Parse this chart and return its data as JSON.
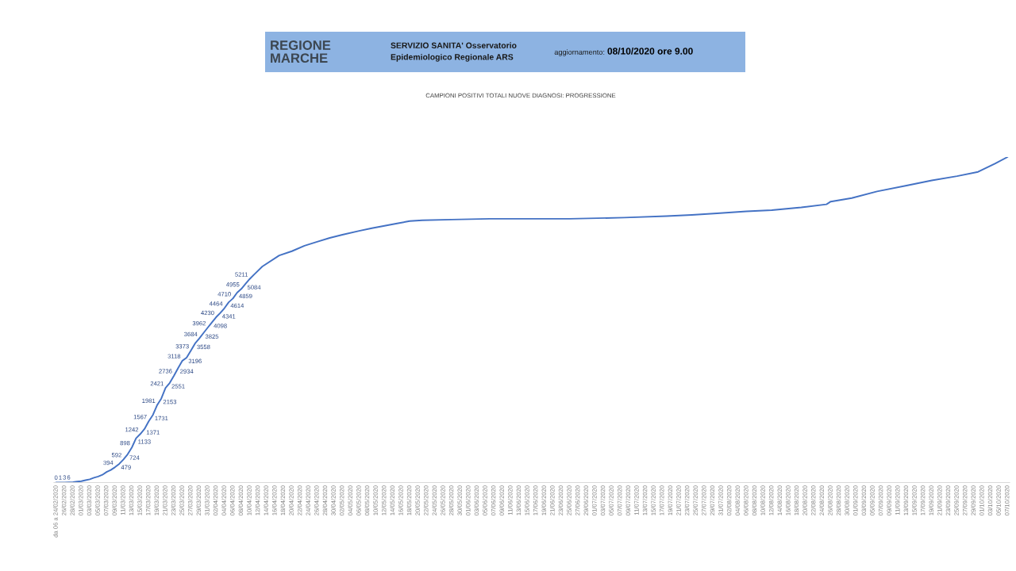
{
  "chart_data": {
    "type": "line",
    "title": "CAMPIONI POSITIVI TOTALI NUOVE DIAGNOSI: PROGRESSIONE",
    "annotations": [
      "REGIONE\nMARCHE",
      "SERVIZIO SANITA' Osservatorio\nEpidemiologico Regionale ARS",
      "aggiornamento:",
      "08/10/2020 ore 9.00"
    ],
    "x": [
      "2020-02-24",
      "2020-02-25",
      "2020-02-26",
      "2020-02-27",
      "2020-02-28",
      "2020-02-29",
      "2020-03-01",
      "2020-03-02",
      "2020-03-03",
      "2020-03-04",
      "2020-03-05",
      "2020-03-06",
      "2020-03-07",
      "2020-03-08",
      "2020-03-09",
      "2020-03-10",
      "2020-03-11",
      "2020-03-12",
      "2020-03-13",
      "2020-03-14",
      "2020-03-15",
      "2020-03-16",
      "2020-03-17",
      "2020-03-18",
      "2020-03-19",
      "2020-03-20",
      "2020-03-21",
      "2020-03-22",
      "2020-03-23",
      "2020-03-24",
      "2020-03-25",
      "2020-03-26",
      "2020-03-27",
      "2020-03-28",
      "2020-03-29",
      "2020-03-30",
      "2020-03-31",
      "2020-04-01",
      "2020-04-02",
      "2020-04-03",
      "2020-04-04",
      "2020-04-05",
      "2020-04-06",
      "2020-04-07",
      "2020-04-08",
      "2020-04-09",
      "2020-04-10",
      "2020-04-11",
      "2020-04-13",
      "2020-04-17",
      "2020-04-20",
      "2020-04-23",
      "2020-04-26",
      "2020-04-29",
      "2020-05-02",
      "2020-05-06",
      "2020-05-09",
      "2020-05-12",
      "2020-05-15",
      "2020-05-18",
      "2020-05-21",
      "2020-05-28",
      "2020-06-06",
      "2020-06-25",
      "2020-07-08",
      "2020-07-18",
      "2020-07-24",
      "2020-07-30",
      "2020-08-06",
      "2020-08-12",
      "2020-08-19",
      "2020-08-25",
      "2020-08-26",
      "2020-08-31",
      "2020-09-06",
      "2020-09-13",
      "2020-09-19",
      "2020-09-25",
      "2020-09-30",
      "2020-10-04",
      "2020-10-07"
    ],
    "values": [
      0,
      1,
      3,
      6,
      11,
      25,
      35,
      61,
      84,
      124,
      155,
      199,
      271,
      323,
      394,
      479,
      592,
      724,
      898,
      1133,
      1242,
      1371,
      1567,
      1731,
      1981,
      2153,
      2421,
      2551,
      2736,
      2934,
      3118,
      3196,
      3373,
      3558,
      3684,
      3825,
      3962,
      4098,
      4230,
      4341,
      4464,
      4614,
      4710,
      4859,
      4955,
      5084,
      5211,
      5320,
      5530,
      5810,
      5920,
      6060,
      6160,
      6260,
      6340,
      6440,
      6510,
      6570,
      6630,
      6690,
      6710,
      6730,
      6750,
      6750,
      6780,
      6820,
      6850,
      6890,
      6940,
      6970,
      7040,
      7120,
      7190,
      7280,
      7450,
      7600,
      7730,
      7840,
      7950,
      8160,
      8330
    ],
    "value_labels": [
      "0",
      "1",
      "3",
      "6",
      null,
      null,
      null,
      null,
      null,
      null,
      null,
      null,
      null,
      null,
      "394",
      "479",
      "592",
      "724",
      "898",
      "1133",
      "1242",
      "1371",
      "1567",
      "1731",
      "1981",
      "2153",
      "2421",
      "2551",
      "2736",
      "2934",
      "3118",
      "3196",
      "3373",
      "3558",
      "3684",
      "3825",
      "3962",
      "4098",
      "4230",
      "4341",
      "4464",
      "4614",
      "4710",
      "4859",
      "4955",
      "5084",
      "5211",
      null,
      null,
      null,
      null,
      null,
      null,
      null,
      null,
      null,
      null,
      null,
      null,
      null,
      null,
      null,
      null,
      null,
      null,
      null,
      null,
      null,
      null,
      null,
      null,
      null,
      null,
      null,
      null,
      null,
      null,
      null,
      null,
      null,
      null
    ],
    "color": "#4472c4",
    "xlim": [
      "2020-02-23T12:00",
      "2020-10-07T12:00"
    ],
    "xticks": [
      {
        "value": "2020-02-24",
        "label": "da 06 a 24/02/2020"
      },
      {
        "value": "2020-02-26",
        "label": "26/02/2020"
      },
      {
        "value": "2020-02-28",
        "label": "28/02/2020"
      },
      {
        "value": "2020-03-01",
        "label": "01/03/2020"
      },
      {
        "value": "2020-03-03",
        "label": "03/03/2020"
      },
      {
        "value": "2020-03-05",
        "label": "05/03/2020"
      },
      {
        "value": "2020-03-07",
        "label": "07/03/2020"
      },
      {
        "value": "2020-03-09",
        "label": "09/03/2020"
      },
      {
        "value": "2020-03-11",
        "label": "11/03/2020"
      },
      {
        "value": "2020-03-13",
        "label": "13/03/2020"
      },
      {
        "value": "2020-03-15",
        "label": "15/03/2020"
      },
      {
        "value": "2020-03-17",
        "label": "17/03/2020"
      },
      {
        "value": "2020-03-19",
        "label": "19/03/2020"
      },
      {
        "value": "2020-03-21",
        "label": "21/03/2020"
      },
      {
        "value": "2020-03-23",
        "label": "23/03/2020"
      },
      {
        "value": "2020-03-25",
        "label": "25/03/2020"
      },
      {
        "value": "2020-03-27",
        "label": "27/03/2020"
      },
      {
        "value": "2020-03-29",
        "label": "29/03/2020"
      },
      {
        "value": "2020-03-31",
        "label": "31/03/2020"
      },
      {
        "value": "2020-04-02",
        "label": "02/04/2020"
      },
      {
        "value": "2020-04-04",
        "label": "04/04/2020"
      },
      {
        "value": "2020-04-06",
        "label": "06/04/2020"
      },
      {
        "value": "2020-04-08",
        "label": "08/04/2020"
      },
      {
        "value": "2020-04-10",
        "label": "10/04/2020"
      },
      {
        "value": "2020-04-12",
        "label": "12/04/2020"
      },
      {
        "value": "2020-04-14",
        "label": "14/04/2020"
      },
      {
        "value": "2020-04-16",
        "label": "16/04/2020"
      },
      {
        "value": "2020-04-18",
        "label": "18/04/2020"
      },
      {
        "value": "2020-04-20",
        "label": "20/04/2020"
      },
      {
        "value": "2020-04-22",
        "label": "22/04/2020"
      },
      {
        "value": "2020-04-24",
        "label": "24/04/2020"
      },
      {
        "value": "2020-04-26",
        "label": "26/04/2020"
      },
      {
        "value": "2020-04-28",
        "label": "28/04/2020"
      },
      {
        "value": "2020-04-30",
        "label": "30/04/2020"
      },
      {
        "value": "2020-05-02",
        "label": "02/05/2020"
      },
      {
        "value": "2020-05-04",
        "label": "04/05/2020"
      },
      {
        "value": "2020-05-06",
        "label": "06/05/2020"
      },
      {
        "value": "2020-05-08",
        "label": "08/05/2020"
      },
      {
        "value": "2020-05-10",
        "label": "10/05/2020"
      },
      {
        "value": "2020-05-12",
        "label": "12/05/2020"
      },
      {
        "value": "2020-05-14",
        "label": "14/05/2020"
      },
      {
        "value": "2020-05-16",
        "label": "16/05/2020"
      },
      {
        "value": "2020-05-18",
        "label": "18/05/2020"
      },
      {
        "value": "2020-05-20",
        "label": "20/05/2020"
      },
      {
        "value": "2020-05-22",
        "label": "22/05/2020"
      },
      {
        "value": "2020-05-24",
        "label": "24/05/2020"
      },
      {
        "value": "2020-05-26",
        "label": "26/05/2020"
      },
      {
        "value": "2020-05-28",
        "label": "28/05/2020"
      },
      {
        "value": "2020-05-30",
        "label": "30/05/2020"
      },
      {
        "value": "2020-06-01",
        "label": "01/06/2020"
      },
      {
        "value": "2020-06-03",
        "label": "03/06/2020"
      },
      {
        "value": "2020-06-05",
        "label": "05/06/2020"
      },
      {
        "value": "2020-06-07",
        "label": "07/06/2020"
      },
      {
        "value": "2020-06-09",
        "label": "09/06/2020"
      },
      {
        "value": "2020-06-11",
        "label": "11/06/2020"
      },
      {
        "value": "2020-06-13",
        "label": "13/06/2020"
      },
      {
        "value": "2020-06-15",
        "label": "15/06/2020"
      },
      {
        "value": "2020-06-17",
        "label": "17/06/2020"
      },
      {
        "value": "2020-06-19",
        "label": "19/06/2020"
      },
      {
        "value": "2020-06-21",
        "label": "21/06/2020"
      },
      {
        "value": "2020-06-23",
        "label": "23/06/2020"
      },
      {
        "value": "2020-06-25",
        "label": "25/06/2020"
      },
      {
        "value": "2020-06-27",
        "label": "27/06/2020"
      },
      {
        "value": "2020-06-29",
        "label": "29/06/2020"
      },
      {
        "value": "2020-07-01",
        "label": "01/07/2020"
      },
      {
        "value": "2020-07-03",
        "label": "03/07/2020"
      },
      {
        "value": "2020-07-05",
        "label": "05/07/2020"
      },
      {
        "value": "2020-07-07",
        "label": "07/07/2020"
      },
      {
        "value": "2020-07-09",
        "label": "09/07/2020"
      },
      {
        "value": "2020-07-11",
        "label": "11/07/2020"
      },
      {
        "value": "2020-07-13",
        "label": "13/07/2020"
      },
      {
        "value": "2020-07-15",
        "label": "15/07/2020"
      },
      {
        "value": "2020-07-17",
        "label": "17/07/2020"
      },
      {
        "value": "2020-07-19",
        "label": "19/07/2020"
      },
      {
        "value": "2020-07-21",
        "label": "21/07/2020"
      },
      {
        "value": "2020-07-23",
        "label": "23/07/2020"
      },
      {
        "value": "2020-07-25",
        "label": "25/07/2020"
      },
      {
        "value": "2020-07-27",
        "label": "27/07/2020"
      },
      {
        "value": "2020-07-29",
        "label": "29/07/2020"
      },
      {
        "value": "2020-07-31",
        "label": "31/07/2020"
      },
      {
        "value": "2020-08-02",
        "label": "02/08/2020"
      },
      {
        "value": "2020-08-04",
        "label": "04/08/2020"
      },
      {
        "value": "2020-08-06",
        "label": "06/08/2020"
      },
      {
        "value": "2020-08-08",
        "label": "08/08/2020"
      },
      {
        "value": "2020-08-10",
        "label": "10/08/2020"
      },
      {
        "value": "2020-08-12",
        "label": "12/08/2020"
      },
      {
        "value": "2020-08-14",
        "label": "14/08/2020"
      },
      {
        "value": "2020-08-16",
        "label": "16/08/2020"
      },
      {
        "value": "2020-08-18",
        "label": "18/08/2020"
      },
      {
        "value": "2020-08-20",
        "label": "20/08/2020"
      },
      {
        "value": "2020-08-22",
        "label": "22/08/2020"
      },
      {
        "value": "2020-08-24",
        "label": "24/08/2020"
      },
      {
        "value": "2020-08-26",
        "label": "26/08/2020"
      },
      {
        "value": "2020-08-28",
        "label": "28/08/2020"
      },
      {
        "value": "2020-08-30",
        "label": "30/08/2020"
      },
      {
        "value": "2020-09-01",
        "label": "01/09/2020"
      },
      {
        "value": "2020-09-03",
        "label": "03/09/2020"
      },
      {
        "value": "2020-09-05",
        "label": "05/09/2020"
      },
      {
        "value": "2020-09-07",
        "label": "07/09/2020"
      },
      {
        "value": "2020-09-09",
        "label": "09/09/2020"
      },
      {
        "value": "2020-09-11",
        "label": "11/09/2020"
      },
      {
        "value": "2020-09-13",
        "label": "13/09/2020"
      },
      {
        "value": "2020-09-15",
        "label": "15/09/2020"
      },
      {
        "value": "2020-09-17",
        "label": "17/09/2020"
      },
      {
        "value": "2020-09-19",
        "label": "19/09/2020"
      },
      {
        "value": "2020-09-21",
        "label": "21/09/2020"
      },
      {
        "value": "2020-09-23",
        "label": "23/09/2020"
      },
      {
        "value": "2020-09-25",
        "label": "25/09/2020"
      },
      {
        "value": "2020-09-27",
        "label": "27/09/2020"
      },
      {
        "value": "2020-09-29",
        "label": "29/09/2020"
      },
      {
        "value": "2020-10-01",
        "label": "01/10/2020"
      },
      {
        "value": "2020-10-03",
        "label": "03/10/2020"
      },
      {
        "value": "2020-10-05",
        "label": "05/10/2020"
      },
      {
        "value": "2020-10-07",
        "label": "07/10/2020"
      }
    ],
    "tick_labels": "x"
  }
}
